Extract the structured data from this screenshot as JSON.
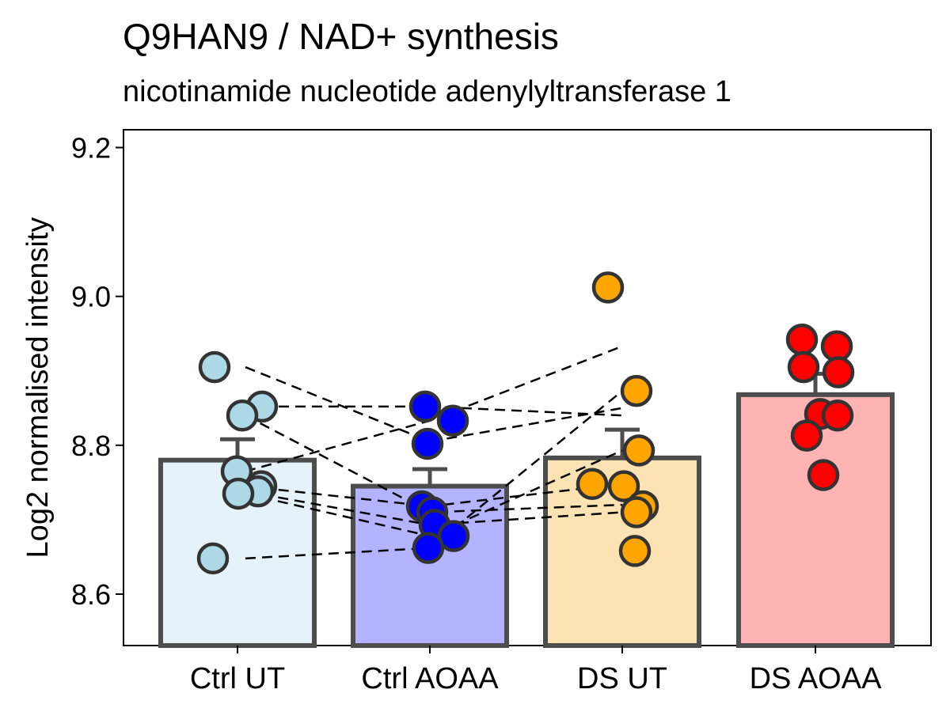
{
  "title": "Q9HAN9 / NAD+ synthesis",
  "subtitle": "nicotinamide nucleotide adenylyltransferase 1",
  "chart_data": {
    "type": "bar",
    "title": "Q9HAN9 / NAD+ synthesis",
    "subtitle": "nicotinamide nucleotide adenylyltransferase 1",
    "xlabel": "",
    "ylabel": "Log2 normalised intensity",
    "ylim": [
      8.53,
      9.22
    ],
    "yticks": [
      8.6,
      8.8,
      9.0,
      9.2
    ],
    "ytick_labels": [
      "8.6",
      "8.8",
      "9.0",
      "9.2"
    ],
    "categories": [
      "Ctrl UT",
      "Ctrl AOAA",
      "DS UT",
      "DS AOAA"
    ],
    "colors": {
      "bar_fill": [
        "#e6f2f9",
        "#b3b3ff",
        "#fde3b3",
        "#ffb3b3"
      ],
      "point_fill": [
        "#add8e6",
        "#0000ff",
        "#ffa500",
        "#ff0000"
      ],
      "outline": "#4d4d4d"
    },
    "values": [
      8.78,
      8.745,
      8.783,
      8.868
    ],
    "errors": [
      0.028,
      0.023,
      0.038,
      0.028
    ],
    "points": [
      [
        8.905,
        8.852,
        8.84,
        8.765,
        8.745,
        8.738,
        8.735,
        8.648
      ],
      [
        8.852,
        8.833,
        8.802,
        8.718,
        8.71,
        8.693,
        8.678,
        8.662
      ],
      [
        9.012,
        8.873,
        8.793,
        8.748,
        8.745,
        8.718,
        8.71,
        8.658
      ],
      [
        8.942,
        8.933,
        8.905,
        8.898,
        8.842,
        8.84,
        8.813,
        8.76
      ]
    ],
    "pairs": [
      [
        8.905,
        8.805,
        8.85
      ],
      [
        8.852,
        8.852,
        8.84
      ],
      [
        8.84,
        8.71,
        8.72
      ],
      [
        8.765,
        8.833,
        8.933
      ],
      [
        8.745,
        8.718,
        8.748
      ],
      [
        8.738,
        8.693,
        8.71
      ],
      [
        8.735,
        8.678,
        8.793
      ],
      [
        8.648,
        8.662,
        8.873
      ]
    ],
    "grid": false,
    "legend": "none"
  }
}
